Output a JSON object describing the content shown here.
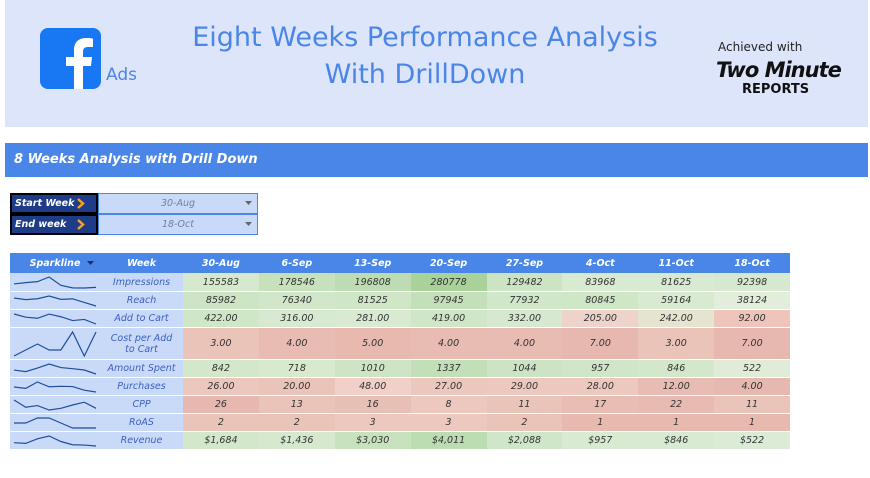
{
  "header": {
    "title_line1": "Eight Weeks Performance Analysis",
    "title_line2": "With DrillDown",
    "logo_label": "Ads",
    "credit": "Achieved with",
    "brand_line1": "Two Minute",
    "brand_line2": "REPORTS"
  },
  "section_title": "8 Weeks Analysis with Drill Down",
  "filters": [
    {
      "label": "Start Week",
      "value": "30-Aug"
    },
    {
      "label": "End week",
      "value": "18-Oct"
    }
  ],
  "table": {
    "columns": [
      "Sparkline",
      "Week",
      "30-Aug",
      "6-Sep",
      "13-Sep",
      "20-Sep",
      "27-Sep",
      "4-Oct",
      "11-Oct",
      "18-Oct"
    ],
    "rows": [
      {
        "metric": "Impressions",
        "values": [
          155583,
          178546,
          196808,
          280778,
          129482,
          83968,
          81625,
          92398
        ],
        "colors": [
          "#d6e9cf",
          "#c6e1bc",
          "#bedcb3",
          "#a9d29b",
          "#cce4c4",
          "#d9ead3",
          "#d9ead3",
          "#d6e8cf"
        ]
      },
      {
        "metric": "Reach",
        "values": [
          85982,
          76340,
          81525,
          97945,
          77932,
          80845,
          59164,
          38124
        ],
        "colors": [
          "#cde5c5",
          "#d2e7ca",
          "#cfe6c7",
          "#c4e0ba",
          "#d1e7c9",
          "#cfe6c7",
          "#d9ead3",
          "#e2eddb"
        ]
      },
      {
        "metric": "Add to Cart",
        "values": [
          "422.00",
          "316.00",
          "281.00",
          "419.00",
          "332.00",
          "205.00",
          "242.00",
          "92.00"
        ],
        "colors": [
          "#cfe6c7",
          "#d7e9d0",
          "#d9ead3",
          "#cfe6c7",
          "#d6e8cf",
          "#eed3ca",
          "#e4e4d0",
          "#eec4bb"
        ]
      },
      {
        "metric": "Cost per Add to Cart",
        "values": [
          "3.00",
          "4.00",
          "5.00",
          "4.00",
          "4.00",
          "7.00",
          "3.00",
          "7.00"
        ],
        "colors": [
          "#eac3b9",
          "#e8bcb2",
          "#e7b9af",
          "#e8bcb2",
          "#e8bcb2",
          "#e6b8af",
          "#eac3b9",
          "#e6b8af"
        ]
      },
      {
        "metric": "Amount Spent",
        "values": [
          842,
          718,
          1010,
          1337,
          1044,
          957,
          846,
          522
        ],
        "colors": [
          "#d3e8cb",
          "#d8eace",
          "#cde5c5",
          "#c2dfb8",
          "#cce4c4",
          "#d0e6c8",
          "#d3e8cb",
          "#e0ecd8"
        ]
      },
      {
        "metric": "Purchases",
        "values": [
          "26.00",
          "20.00",
          "48.00",
          "27.00",
          "29.00",
          "28.00",
          "12.00",
          "4.00"
        ],
        "colors": [
          "#ecc7be",
          "#eac3b9",
          "#f0d0c8",
          "#ecc7be",
          "#ecc8bf",
          "#ecc8bf",
          "#e8bcb2",
          "#e6b8af"
        ]
      },
      {
        "metric": "CPP",
        "values": [
          26,
          13,
          16,
          8,
          11,
          17,
          22,
          11
        ],
        "colors": [
          "#e6b8af",
          "#eac3b9",
          "#e8bfb5",
          "#ecc8bf",
          "#eac3b9",
          "#e8beb4",
          "#e7bbb1",
          "#eac3b9"
        ]
      },
      {
        "metric": "RoAS",
        "values": [
          2,
          2,
          3,
          3,
          2,
          1,
          1,
          1
        ],
        "colors": [
          "#eac3b9",
          "#eac3b9",
          "#ecc8bf",
          "#ecc8bf",
          "#eac3b9",
          "#e7b9af",
          "#e7b9af",
          "#e7b9af"
        ]
      },
      {
        "metric": "Revenue",
        "values": [
          "$1,684",
          "$1,436",
          "$3,030",
          "$4,011",
          "$2,088",
          "$957",
          "$846",
          "$522"
        ],
        "colors": [
          "#d3e8cb",
          "#d6e9cf",
          "#c8e2be",
          "#bcdcb1",
          "#d0e6c8",
          "#d9ead3",
          "#d9ead3",
          "#dcebd5"
        ]
      }
    ]
  }
}
